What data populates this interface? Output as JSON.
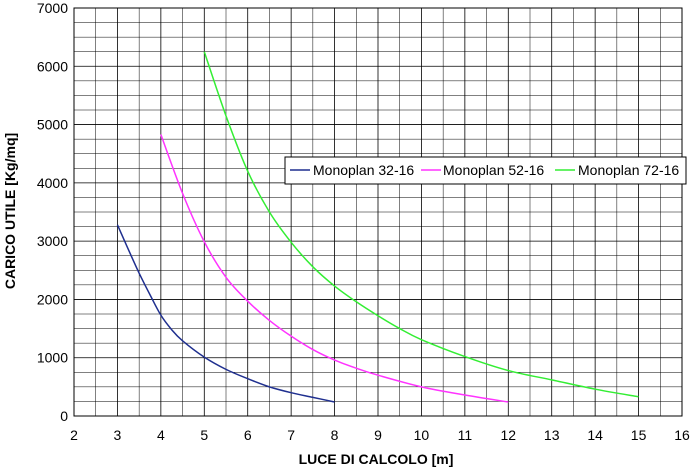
{
  "chart_data": {
    "type": "line",
    "title": "",
    "xlabel": "LUCE DI CALCOLO [m]",
    "ylabel": "CARICO UTILE [Kg/mq]",
    "xlim": [
      2,
      16
    ],
    "ylim": [
      0,
      7000
    ],
    "x_ticks": [
      2,
      3,
      4,
      5,
      6,
      7,
      8,
      9,
      10,
      11,
      12,
      13,
      14,
      15,
      16
    ],
    "y_ticks": [
      0,
      1000,
      2000,
      3000,
      4000,
      5000,
      6000,
      7000
    ],
    "x_minor_step": 0.5,
    "y_minor_step": 250,
    "grid": true,
    "legend_position": "right-center",
    "series": [
      {
        "name": "Monoplan 32-16",
        "color": "#1f2f8f",
        "x": [
          3.0,
          3.25,
          3.5,
          3.75,
          4.0,
          4.25,
          4.5,
          5.0,
          5.5,
          6.0,
          6.5,
          7.0,
          7.5,
          8.0
        ],
        "y": [
          3280,
          2860,
          2450,
          2080,
          1730,
          1480,
          1290,
          1010,
          800,
          640,
          500,
          400,
          320,
          240
        ]
      },
      {
        "name": "Monoplan 52-16",
        "color": "#ff33ff",
        "x": [
          4.0,
          4.5,
          5.0,
          5.5,
          6.0,
          6.5,
          7.0,
          7.5,
          8.0,
          8.5,
          9.0,
          10.0,
          11.0,
          12.0
        ],
        "y": [
          4830,
          3820,
          2990,
          2380,
          1970,
          1640,
          1370,
          1140,
          960,
          820,
          700,
          500,
          360,
          240
        ]
      },
      {
        "name": "Monoplan 72-16",
        "color": "#33ee33",
        "x": [
          5.0,
          5.5,
          6.0,
          6.5,
          7.0,
          7.5,
          8.0,
          8.5,
          9.0,
          9.5,
          10.0,
          11.0,
          12.0,
          13.0,
          14.0,
          15.0
        ],
        "y": [
          6250,
          5150,
          4200,
          3500,
          2980,
          2560,
          2230,
          1960,
          1720,
          1500,
          1310,
          1020,
          780,
          620,
          460,
          330
        ]
      }
    ]
  }
}
